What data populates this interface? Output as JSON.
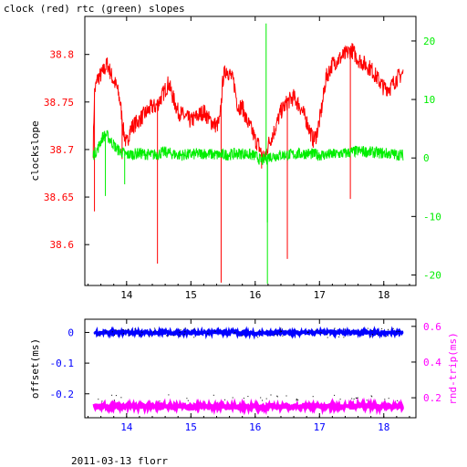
{
  "title": "clock (red) rtc (green) slopes",
  "footer": "2011-03-13 florr",
  "colors": {
    "clock": "#ff0000",
    "rtc": "#00ee00",
    "offset": "#0000ff",
    "roundtrip": "#ff00ff",
    "axis": "#000000"
  },
  "chart_data": [
    {
      "type": "line",
      "title": "clock (red) rtc (green) slopes",
      "ylabel": "clockslope",
      "y2label": "",
      "xlim": [
        13.35,
        18.5
      ],
      "ylim": [
        38.557,
        38.84
      ],
      "y2lim": [
        -21.8,
        24.2
      ],
      "x_ticks": [
        14,
        15,
        16,
        17,
        18
      ],
      "x_tick_labels": [
        "14",
        "15",
        "16",
        "17",
        "18"
      ],
      "y_ticks": [
        38.6,
        38.65,
        38.7,
        38.75,
        38.8
      ],
      "y_tick_labels": [
        "38.6",
        "38.65",
        "38.7",
        "38.75",
        "38.8"
      ],
      "y2_ticks": [
        -20,
        -10,
        0,
        10,
        20
      ],
      "y2_tick_labels": [
        "-20",
        "-10",
        "0",
        "10",
        "20"
      ],
      "grid": false,
      "series": [
        {
          "name": "clock",
          "axis": "left",
          "color": "#ff0000",
          "x": [
            13.48,
            13.5,
            13.55,
            13.62,
            13.7,
            13.78,
            13.85,
            13.9,
            13.95,
            14.0,
            14.05,
            14.1,
            14.18,
            14.25,
            14.32,
            14.4,
            14.45,
            14.5,
            14.58,
            14.65,
            14.72,
            14.8,
            14.9,
            15.0,
            15.1,
            15.2,
            15.3,
            15.4,
            15.45,
            15.5,
            15.55,
            15.6,
            15.67,
            15.73,
            15.8,
            15.87,
            15.95,
            16.0,
            16.05,
            16.1,
            16.15,
            16.2,
            16.3,
            16.4,
            16.5,
            16.6,
            16.7,
            16.8,
            16.85,
            16.9,
            16.95,
            17.0,
            17.05,
            17.1,
            17.2,
            17.3,
            17.4,
            17.5,
            17.6,
            17.7,
            17.8,
            17.9,
            18.0,
            18.1,
            18.2,
            18.3
          ],
          "y": [
            38.7,
            38.76,
            38.775,
            38.78,
            38.79,
            38.775,
            38.765,
            38.75,
            38.72,
            38.705,
            38.72,
            38.725,
            38.73,
            38.735,
            38.74,
            38.745,
            38.745,
            38.75,
            38.76,
            38.77,
            38.755,
            38.74,
            38.735,
            38.73,
            38.735,
            38.74,
            38.73,
            38.725,
            38.73,
            38.775,
            38.785,
            38.78,
            38.77,
            38.745,
            38.745,
            38.73,
            38.72,
            38.71,
            38.705,
            38.695,
            38.69,
            38.705,
            38.72,
            38.74,
            38.75,
            38.755,
            38.745,
            38.73,
            38.72,
            38.71,
            38.715,
            38.73,
            38.75,
            38.775,
            38.79,
            38.795,
            38.8,
            38.805,
            38.795,
            38.79,
            38.785,
            38.775,
            38.765,
            38.765,
            38.775,
            38.78
          ]
        },
        {
          "name": "rtc",
          "axis": "right",
          "color": "#00ee00",
          "x": [
            13.48,
            13.55,
            13.62,
            13.68,
            13.75,
            13.85,
            14.0,
            14.2,
            14.4,
            14.6,
            14.8,
            15.0,
            15.2,
            15.4,
            15.6,
            15.8,
            16.0,
            16.1,
            16.2,
            16.4,
            16.6,
            16.8,
            17.0,
            17.2,
            17.4,
            17.6,
            17.8,
            18.0,
            18.3
          ],
          "y": [
            0.5,
            1.5,
            3.5,
            4.0,
            3.0,
            1.5,
            0.5,
            0.8,
            0.5,
            1.0,
            0.5,
            0.6,
            0.8,
            0.5,
            0.6,
            0.8,
            0.4,
            -0.5,
            0.2,
            0.5,
            0.6,
            0.8,
            0.5,
            0.6,
            0.8,
            1.2,
            1.0,
            0.8,
            0.5
          ]
        }
      ],
      "annotations": {
        "clock_dips": [
          {
            "x": 13.5,
            "y": 38.635
          },
          {
            "x": 13.93,
            "y": 38.69
          },
          {
            "x": 14.48,
            "y": 38.58
          },
          {
            "x": 15.47,
            "y": 38.56
          },
          {
            "x": 16.1,
            "y": 38.68
          },
          {
            "x": 16.5,
            "y": 38.585
          },
          {
            "x": 17.48,
            "y": 38.648
          }
        ],
        "rtc_spikes": [
          {
            "x": 13.67,
            "y": -6.5
          },
          {
            "x": 13.97,
            "y": -4.5
          },
          {
            "x": 16.17,
            "y": 23.0
          },
          {
            "x": 16.19,
            "y": -21.5
          },
          {
            "x": 16.19,
            "y": -11.0
          }
        ]
      }
    },
    {
      "type": "scatter",
      "ylabel": "offset(ms)",
      "y2label": "rnd-trip(ms)",
      "xlim": [
        13.35,
        18.5
      ],
      "ylim": [
        -0.278,
        0.043
      ],
      "y2lim": [
        0.088,
        0.64
      ],
      "x_ticks": [
        14,
        15,
        16,
        17,
        18
      ],
      "x_tick_labels": [
        "14",
        "15",
        "16",
        "17",
        "18"
      ],
      "y_ticks": [
        0,
        -0.1,
        -0.2
      ],
      "y_tick_labels": [
        "0",
        "-0.1",
        "-0.2"
      ],
      "y2_ticks": [
        0.2,
        0.4,
        0.6
      ],
      "y2_tick_labels": [
        "0.2",
        "0.4",
        "0.6"
      ],
      "grid": false,
      "series": [
        {
          "name": "offset",
          "axis": "left",
          "color": "#0000ff",
          "x": [
            13.5,
            14.0,
            14.5,
            15.0,
            15.5,
            16.0,
            16.5,
            17.0,
            17.5,
            18.0,
            18.3
          ],
          "y": [
            0.0,
            0.0,
            -0.001,
            0.0,
            0.0,
            -0.002,
            0.0,
            0.0,
            -0.001,
            0.0,
            0.0
          ]
        },
        {
          "name": "roundtrip",
          "axis": "right",
          "color": "#ff00ff",
          "x": [
            13.5,
            14.0,
            14.5,
            15.0,
            15.5,
            16.0,
            16.5,
            17.0,
            17.5,
            18.0,
            18.3
          ],
          "y": [
            0.155,
            0.152,
            0.153,
            0.15,
            0.152,
            0.148,
            0.151,
            0.152,
            0.154,
            0.152,
            0.15
          ]
        }
      ]
    }
  ]
}
